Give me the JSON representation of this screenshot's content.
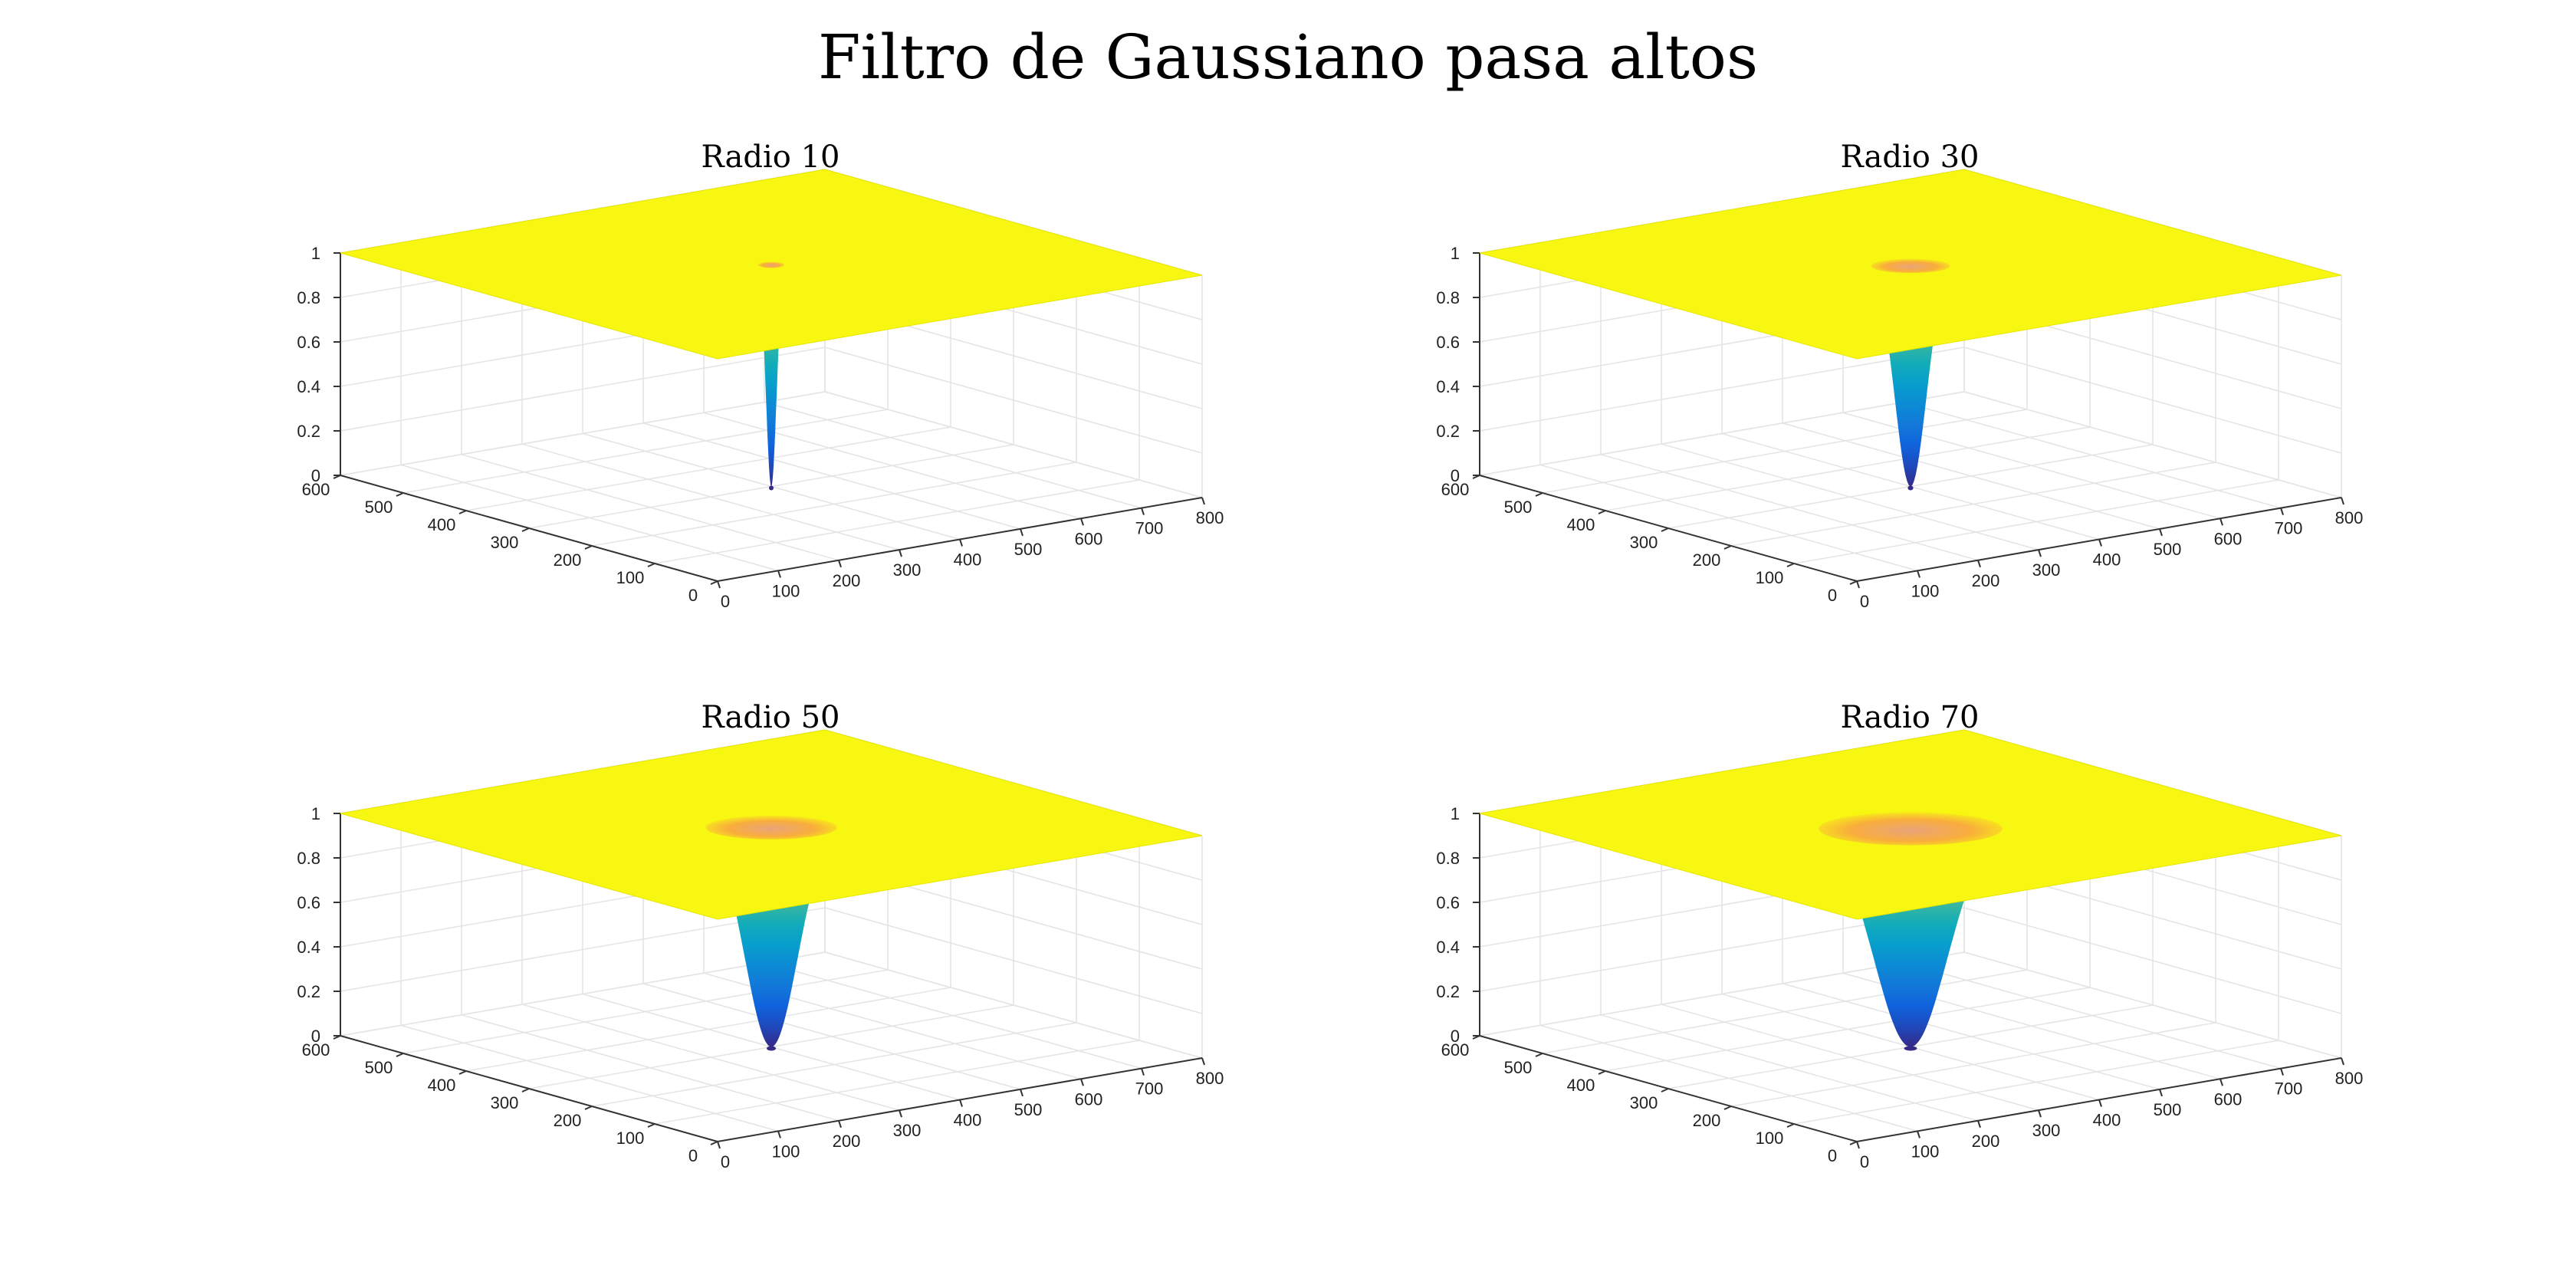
{
  "figure": {
    "title": "Filtro de Gaussiano pasa altos"
  },
  "colors": {
    "surface_high": "#f7f712",
    "surface_mid": "#27b8a4",
    "surface_low": "#3a2bc4",
    "inner_top": "#f9ad3c"
  },
  "chart_data": [
    {
      "type": "surface",
      "title": "Radio 10",
      "radius": 10,
      "function": "1 - exp(-D^2 / (2*radius^2))",
      "center": [
        400,
        300
      ],
      "xlim": [
        0,
        800
      ],
      "ylim": [
        0,
        600
      ],
      "zlim": [
        0,
        1
      ],
      "xticks": [
        "0",
        "100",
        "200",
        "300",
        "400",
        "500",
        "600",
        "700",
        "800"
      ],
      "yticks": [
        "0",
        "100",
        "200",
        "300",
        "400",
        "500",
        "600"
      ],
      "zticks": [
        "0",
        "0.2",
        "0.4",
        "0.6",
        "0.8",
        "1"
      ],
      "grid": true,
      "colormap": "parula"
    },
    {
      "type": "surface",
      "title": "Radio 30",
      "radius": 30,
      "function": "1 - exp(-D^2 / (2*radius^2))",
      "center": [
        400,
        300
      ],
      "xlim": [
        0,
        800
      ],
      "ylim": [
        0,
        600
      ],
      "zlim": [
        0,
        1
      ],
      "xticks": [
        "0",
        "100",
        "200",
        "300",
        "400",
        "500",
        "600",
        "700",
        "800"
      ],
      "yticks": [
        "0",
        "100",
        "200",
        "300",
        "400",
        "500",
        "600"
      ],
      "zticks": [
        "0",
        "0.2",
        "0.4",
        "0.6",
        "0.8",
        "1"
      ],
      "grid": true,
      "colormap": "parula"
    },
    {
      "type": "surface",
      "title": "Radio 50",
      "radius": 50,
      "function": "1 - exp(-D^2 / (2*radius^2))",
      "center": [
        400,
        300
      ],
      "xlim": [
        0,
        800
      ],
      "ylim": [
        0,
        600
      ],
      "zlim": [
        0,
        1
      ],
      "xticks": [
        "0",
        "100",
        "200",
        "300",
        "400",
        "500",
        "600",
        "700",
        "800"
      ],
      "yticks": [
        "0",
        "100",
        "200",
        "300",
        "400",
        "500",
        "600"
      ],
      "zticks": [
        "0",
        "0.2",
        "0.4",
        "0.6",
        "0.8",
        "1"
      ],
      "grid": true,
      "colormap": "parula"
    },
    {
      "type": "surface",
      "title": "Radio 70",
      "radius": 70,
      "function": "1 - exp(-D^2 / (2*radius^2))",
      "center": [
        400,
        300
      ],
      "xlim": [
        0,
        800
      ],
      "ylim": [
        0,
        600
      ],
      "zlim": [
        0,
        1
      ],
      "xticks": [
        "0",
        "100",
        "200",
        "300",
        "400",
        "500",
        "600",
        "700",
        "800"
      ],
      "yticks": [
        "0",
        "100",
        "200",
        "300",
        "400",
        "500",
        "600"
      ],
      "zticks": [
        "0",
        "0.2",
        "0.4",
        "0.6",
        "0.8",
        "1"
      ],
      "grid": true,
      "colormap": "parula"
    }
  ]
}
